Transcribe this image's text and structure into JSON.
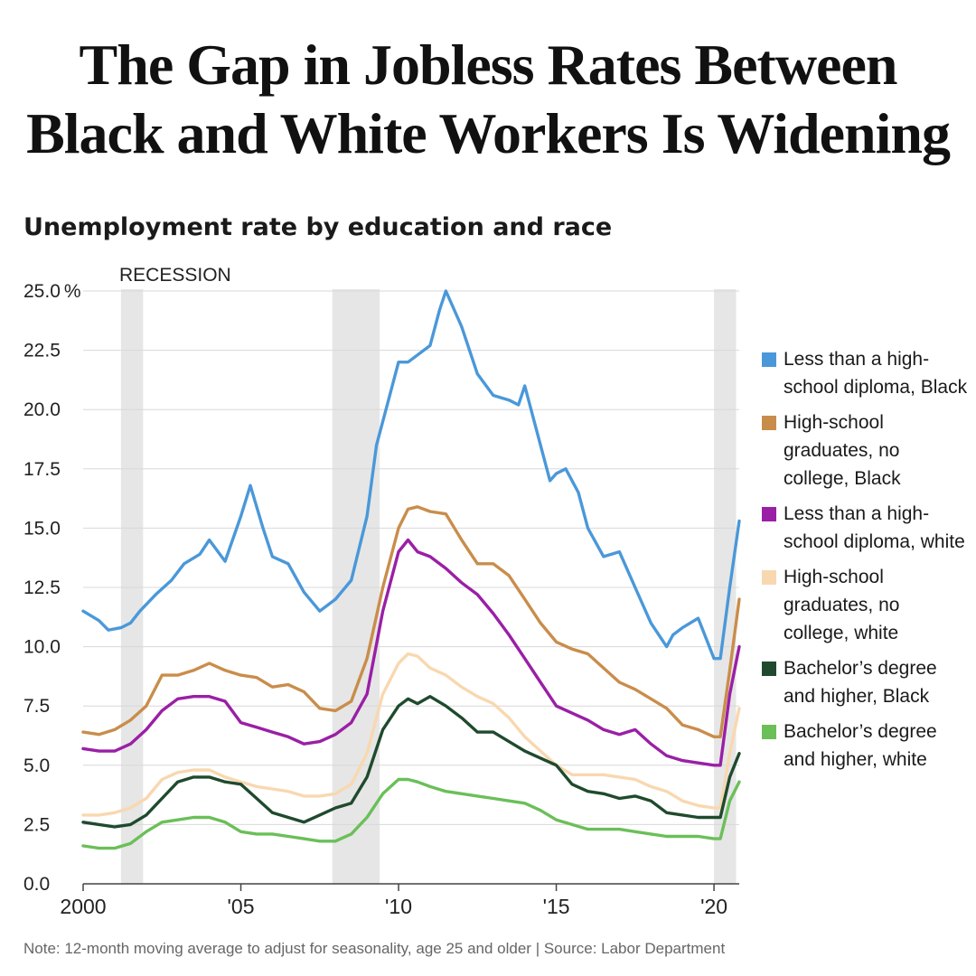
{
  "headline": {
    "line1": "The Gap in Jobless Rates Between",
    "line2": "Black and White Workers Is Widening"
  },
  "note": "Note: 12-month moving average to adjust for seasonality, age 25 and older | Source: Labor Department",
  "chart_data": {
    "type": "line",
    "title": "Unemployment rate by education and race",
    "ylim": [
      0,
      25
    ],
    "xlim": [
      2000,
      2020.8
    ],
    "y_ticks": [
      {
        "value": 25,
        "label": "25.0"
      },
      {
        "value": 22.5,
        "label": "22.5"
      },
      {
        "value": 20,
        "label": "20.0"
      },
      {
        "value": 17.5,
        "label": "17.5"
      },
      {
        "value": 15,
        "label": "15.0"
      },
      {
        "value": 12.5,
        "label": "12.5"
      },
      {
        "value": 10,
        "label": "10.0"
      },
      {
        "value": 7.5,
        "label": "7.5"
      },
      {
        "value": 5,
        "label": "5.0"
      },
      {
        "value": 2.5,
        "label": "2.5"
      },
      {
        "value": 0,
        "label": "0.0"
      }
    ],
    "y_unit": "%",
    "x_ticks": [
      {
        "value": 2000,
        "label": "2000"
      },
      {
        "value": 2005,
        "label": "'05"
      },
      {
        "value": 2010,
        "label": "'10"
      },
      {
        "value": 2015,
        "label": "'15"
      },
      {
        "value": 2020,
        "label": "'20"
      }
    ],
    "grid": true,
    "legend_position": "right",
    "recession_label": "RECESSION",
    "recessions": [
      [
        2001.2,
        2001.9
      ],
      [
        2007.9,
        2009.4
      ],
      [
        2020.0,
        2020.7
      ]
    ],
    "series": [
      {
        "name": "Less than a high-school diploma, Black",
        "color": "#4a98d9",
        "x": [
          2000,
          2000.5,
          2000.8,
          2001.2,
          2001.5,
          2001.8,
          2002.3,
          2002.8,
          2003.2,
          2003.7,
          2004,
          2004.5,
          2005,
          2005.3,
          2005.7,
          2006,
          2006.5,
          2007,
          2007.5,
          2008,
          2008.5,
          2009,
          2009.3,
          2009.7,
          2010,
          2010.3,
          2010.6,
          2011,
          2011.3,
          2011.5,
          2012,
          2012.5,
          2013,
          2013.5,
          2013.8,
          2014,
          2014.5,
          2014.8,
          2015,
          2015.3,
          2015.7,
          2016,
          2016.5,
          2017,
          2017.5,
          2018,
          2018.5,
          2018.7,
          2019,
          2019.5,
          2020,
          2020.2,
          2020.5,
          2020.8
        ],
        "y": [
          11.5,
          11.1,
          10.7,
          10.8,
          11.0,
          11.5,
          12.2,
          12.8,
          13.5,
          13.9,
          14.5,
          13.6,
          15.5,
          16.8,
          15.0,
          13.8,
          13.5,
          12.3,
          11.5,
          12.0,
          12.8,
          15.5,
          18.5,
          20.5,
          22.0,
          22.0,
          22.3,
          22.7,
          24.2,
          25.0,
          23.5,
          21.5,
          20.6,
          20.4,
          20.2,
          21.0,
          18.5,
          17.0,
          17.3,
          17.5,
          16.5,
          15.0,
          13.8,
          14.0,
          12.5,
          11.0,
          10.0,
          10.5,
          10.8,
          11.2,
          9.5,
          9.5,
          12.5,
          15.3
        ]
      },
      {
        "name": "High-school graduates, no college, Black",
        "color": "#c98d4b",
        "x": [
          2000,
          2000.5,
          2001,
          2001.5,
          2002,
          2002.5,
          2003,
          2003.5,
          2004,
          2004.5,
          2005,
          2005.5,
          2006,
          2006.5,
          2007,
          2007.5,
          2008,
          2008.5,
          2009,
          2009.5,
          2010,
          2010.3,
          2010.6,
          2011,
          2011.5,
          2012,
          2012.5,
          2013,
          2013.5,
          2014,
          2014.5,
          2015,
          2015.5,
          2016,
          2016.5,
          2017,
          2017.5,
          2018,
          2018.5,
          2019,
          2019.5,
          2020,
          2020.2,
          2020.5,
          2020.8
        ],
        "y": [
          6.4,
          6.3,
          6.5,
          6.9,
          7.5,
          8.8,
          8.8,
          9.0,
          9.3,
          9.0,
          8.8,
          8.7,
          8.3,
          8.4,
          8.1,
          7.4,
          7.3,
          7.7,
          9.5,
          12.5,
          15.0,
          15.8,
          15.9,
          15.7,
          15.6,
          14.5,
          13.5,
          13.5,
          13.0,
          12.0,
          11.0,
          10.2,
          9.9,
          9.7,
          9.1,
          8.5,
          8.2,
          7.8,
          7.4,
          6.7,
          6.5,
          6.2,
          6.2,
          9.0,
          12.0
        ]
      },
      {
        "name": "Less than a high-school diploma, white",
        "color": "#9a1fa6",
        "x": [
          2000,
          2000.5,
          2001,
          2001.5,
          2002,
          2002.5,
          2003,
          2003.5,
          2004,
          2004.5,
          2005,
          2005.5,
          2006,
          2006.5,
          2007,
          2007.5,
          2008,
          2008.5,
          2009,
          2009.5,
          2010,
          2010.3,
          2010.6,
          2011,
          2011.5,
          2012,
          2012.5,
          2013,
          2013.5,
          2014,
          2014.5,
          2015,
          2015.5,
          2016,
          2016.5,
          2017,
          2017.5,
          2018,
          2018.5,
          2019,
          2019.5,
          2020,
          2020.2,
          2020.5,
          2020.8
        ],
        "y": [
          5.7,
          5.6,
          5.6,
          5.9,
          6.5,
          7.3,
          7.8,
          7.9,
          7.9,
          7.7,
          6.8,
          6.6,
          6.4,
          6.2,
          5.9,
          6.0,
          6.3,
          6.8,
          8.0,
          11.5,
          14.0,
          14.5,
          14.0,
          13.8,
          13.3,
          12.7,
          12.2,
          11.4,
          10.5,
          9.5,
          8.5,
          7.5,
          7.2,
          6.9,
          6.5,
          6.3,
          6.5,
          5.9,
          5.4,
          5.2,
          5.1,
          5.0,
          5.0,
          8.0,
          10.0
        ]
      },
      {
        "name": "High-school graduates, no college, white",
        "color": "#f8d8b0",
        "x": [
          2000,
          2000.5,
          2001,
          2001.5,
          2002,
          2002.5,
          2003,
          2003.5,
          2004,
          2004.5,
          2005,
          2005.5,
          2006,
          2006.5,
          2007,
          2007.5,
          2008,
          2008.5,
          2009,
          2009.5,
          2010,
          2010.3,
          2010.6,
          2011,
          2011.5,
          2012,
          2012.5,
          2013,
          2013.5,
          2014,
          2014.5,
          2015,
          2015.5,
          2016,
          2016.5,
          2017,
          2017.5,
          2018,
          2018.5,
          2019,
          2019.5,
          2020,
          2020.2,
          2020.5,
          2020.8
        ],
        "y": [
          2.9,
          2.9,
          3.0,
          3.2,
          3.6,
          4.4,
          4.7,
          4.8,
          4.8,
          4.5,
          4.3,
          4.1,
          4.0,
          3.9,
          3.7,
          3.7,
          3.8,
          4.2,
          5.5,
          8.0,
          9.3,
          9.7,
          9.6,
          9.1,
          8.8,
          8.3,
          7.9,
          7.6,
          7.0,
          6.2,
          5.6,
          5.0,
          4.6,
          4.6,
          4.6,
          4.5,
          4.4,
          4.1,
          3.9,
          3.5,
          3.3,
          3.2,
          3.2,
          5.5,
          7.4
        ]
      },
      {
        "name": "Bachelor’s degree and higher, Black",
        "color": "#1f4a2d",
        "x": [
          2000,
          2000.5,
          2001,
          2001.5,
          2002,
          2002.5,
          2003,
          2003.5,
          2004,
          2004.5,
          2005,
          2005.5,
          2006,
          2006.5,
          2007,
          2007.5,
          2008,
          2008.5,
          2009,
          2009.5,
          2010,
          2010.3,
          2010.6,
          2011,
          2011.5,
          2012,
          2012.5,
          2013,
          2013.5,
          2014,
          2014.5,
          2015,
          2015.5,
          2016,
          2016.5,
          2017,
          2017.5,
          2018,
          2018.5,
          2019,
          2019.5,
          2020,
          2020.2,
          2020.5,
          2020.8
        ],
        "y": [
          2.6,
          2.5,
          2.4,
          2.5,
          2.9,
          3.6,
          4.3,
          4.5,
          4.5,
          4.3,
          4.2,
          3.6,
          3.0,
          2.8,
          2.6,
          2.9,
          3.2,
          3.4,
          4.5,
          6.5,
          7.5,
          7.8,
          7.6,
          7.9,
          7.5,
          7.0,
          6.4,
          6.4,
          6.0,
          5.6,
          5.3,
          5.0,
          4.2,
          3.9,
          3.8,
          3.6,
          3.7,
          3.5,
          3.0,
          2.9,
          2.8,
          2.8,
          2.8,
          4.5,
          5.5
        ]
      },
      {
        "name": "Bachelor’s degree and higher, white",
        "color": "#6bbf59",
        "x": [
          2000,
          2000.5,
          2001,
          2001.5,
          2002,
          2002.5,
          2003,
          2003.5,
          2004,
          2004.5,
          2005,
          2005.5,
          2006,
          2006.5,
          2007,
          2007.5,
          2008,
          2008.5,
          2009,
          2009.5,
          2010,
          2010.3,
          2010.6,
          2011,
          2011.5,
          2012,
          2012.5,
          2013,
          2013.5,
          2014,
          2014.5,
          2015,
          2015.5,
          2016,
          2016.5,
          2017,
          2017.5,
          2018,
          2018.5,
          2019,
          2019.5,
          2020,
          2020.2,
          2020.5,
          2020.8
        ],
        "y": [
          1.6,
          1.5,
          1.5,
          1.7,
          2.2,
          2.6,
          2.7,
          2.8,
          2.8,
          2.6,
          2.2,
          2.1,
          2.1,
          2.0,
          1.9,
          1.8,
          1.8,
          2.1,
          2.8,
          3.8,
          4.4,
          4.4,
          4.3,
          4.1,
          3.9,
          3.8,
          3.7,
          3.6,
          3.5,
          3.4,
          3.1,
          2.7,
          2.5,
          2.3,
          2.3,
          2.3,
          2.2,
          2.1,
          2.0,
          2.0,
          2.0,
          1.9,
          1.9,
          3.5,
          4.3
        ]
      }
    ]
  }
}
